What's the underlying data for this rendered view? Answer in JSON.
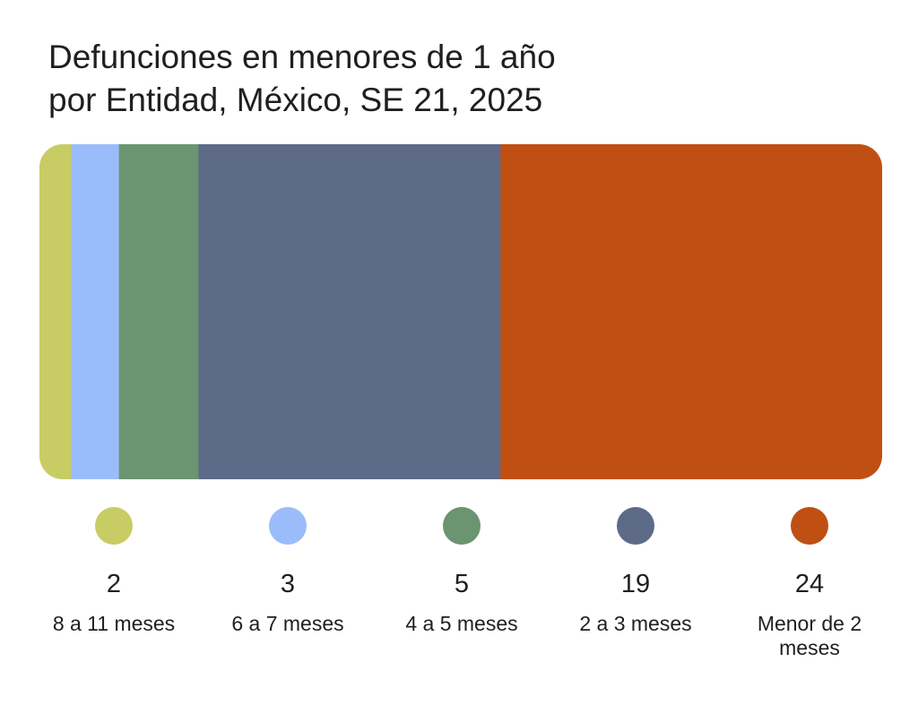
{
  "chart_data": {
    "type": "bar",
    "orientation": "horizontal-stacked-100",
    "title_lines": [
      "Defunciones en menores de 1 año",
      "por Entidad, México, SE 21, 2025"
    ],
    "categories": [
      "8 a 11 meses",
      "6 a 7 meses",
      "4 a 5 meses",
      "2 a 3 meses",
      "Menor de 2 meses"
    ],
    "values": [
      2,
      3,
      5,
      19,
      24
    ],
    "colors": [
      "#c8cc64",
      "#9bbcfb",
      "#6b9470",
      "#5d6b88",
      "#c04f14"
    ],
    "legend_position": "bottom",
    "grid": false
  }
}
